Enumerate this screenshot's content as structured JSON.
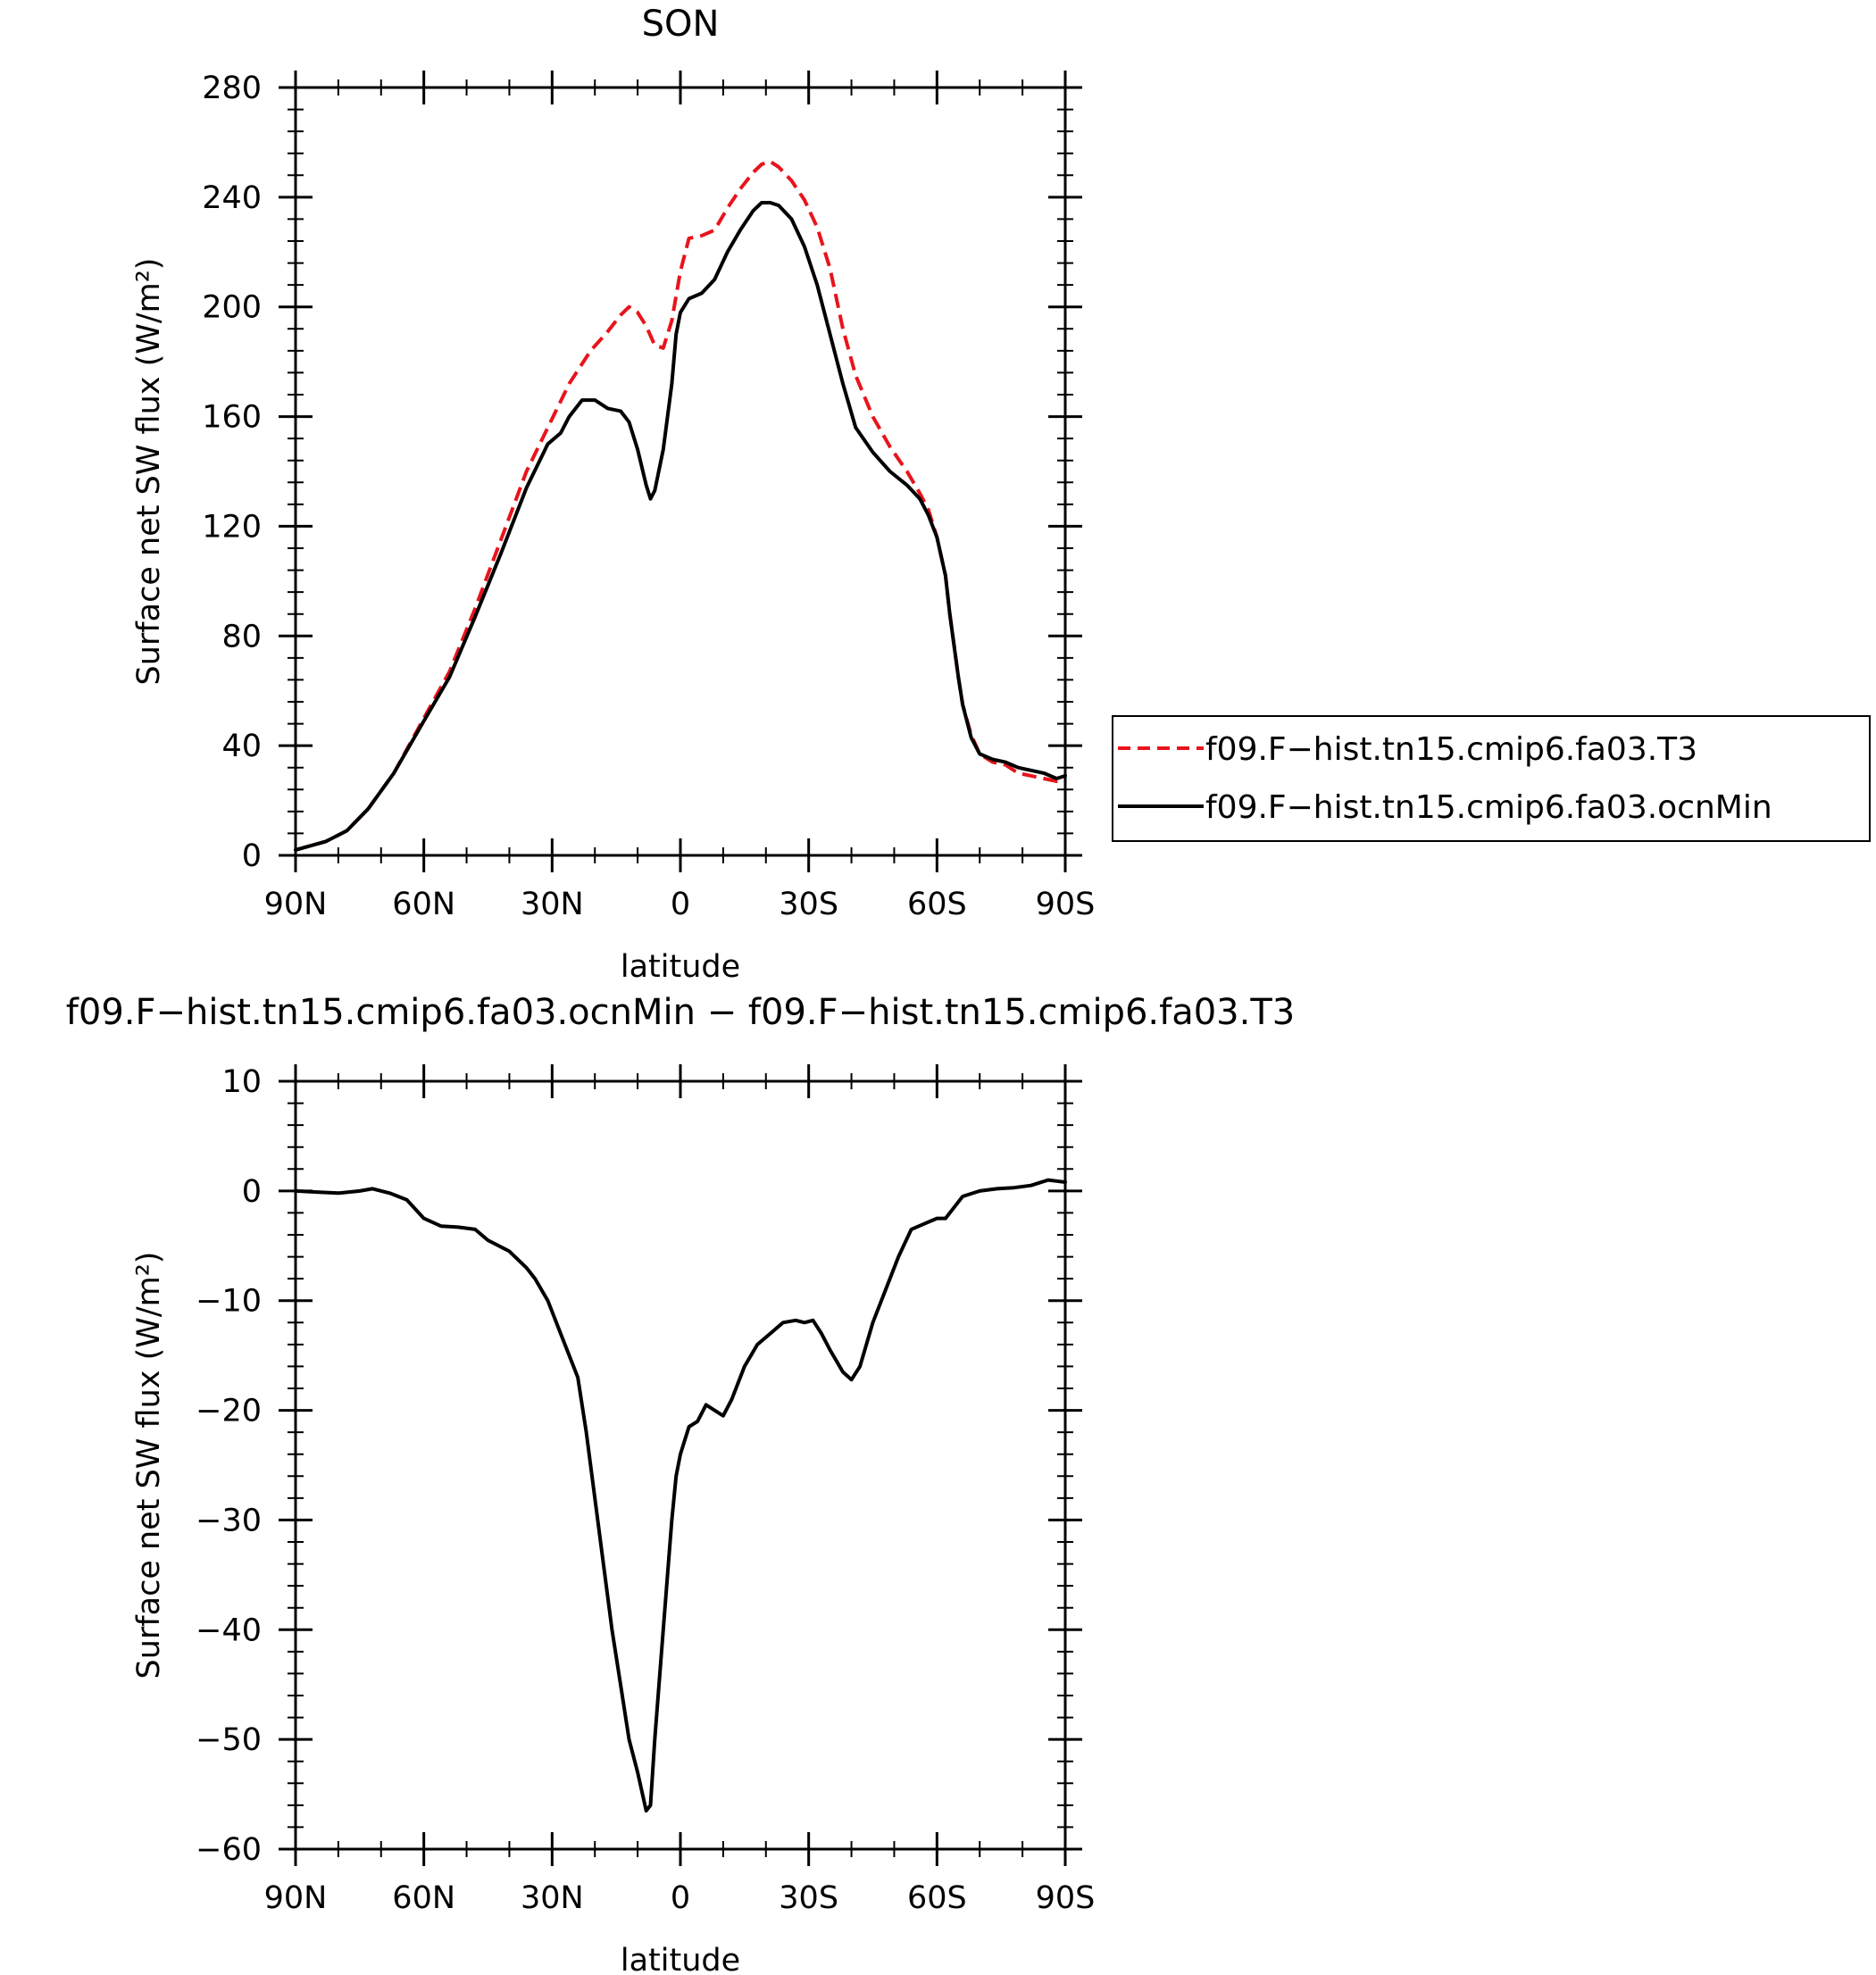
{
  "chart_data": [
    {
      "type": "line",
      "title": "SON",
      "xlabel": "latitude",
      "ylabel": "Surface net SW flux (W/m²)",
      "xlim": [
        90,
        -90
      ],
      "ylim": [
        0,
        280
      ],
      "yticks": [
        0,
        40,
        80,
        120,
        160,
        200,
        240,
        280
      ],
      "xticks": [
        90,
        60,
        30,
        0,
        -30,
        -60,
        -90
      ],
      "xtick_labels": [
        "90N",
        "60N",
        "30N",
        "0",
        "30S",
        "60S",
        "90S"
      ],
      "ytick_labels": [
        "0",
        "40",
        "80",
        "120",
        "160",
        "200",
        "240",
        "280"
      ],
      "grid": false,
      "legend_position": "right",
      "series": [
        {
          "name": "f09.F−hist.tn15.cmip6.fa03.T3",
          "color": "#e8141c",
          "dash": "dashed",
          "points": [
            [
              90,
              2
            ],
            [
              83,
              5
            ],
            [
              78,
              9
            ],
            [
              73,
              17
            ],
            [
              67,
              30
            ],
            [
              60,
              50
            ],
            [
              54,
              67
            ],
            [
              48,
              90
            ],
            [
              42,
              115
            ],
            [
              36,
              140
            ],
            [
              31,
              156
            ],
            [
              26,
              172
            ],
            [
              21,
              184
            ],
            [
              17,
              191
            ],
            [
              14,
              197
            ],
            [
              12,
              200
            ],
            [
              10,
              198
            ],
            [
              8,
              193
            ],
            [
              6,
              186
            ],
            [
              4,
              185
            ],
            [
              2,
              195
            ],
            [
              0,
              213
            ],
            [
              -2,
              225
            ],
            [
              -5,
              226
            ],
            [
              -8,
              228
            ],
            [
              -11,
              236
            ],
            [
              -14,
              243
            ],
            [
              -17,
              249
            ],
            [
              -19,
              252
            ],
            [
              -21,
              253
            ],
            [
              -23,
              251
            ],
            [
              -26,
              246
            ],
            [
              -29,
              239
            ],
            [
              -32,
              229
            ],
            [
              -35,
              214
            ],
            [
              -38,
              192
            ],
            [
              -41,
              175
            ],
            [
              -45,
              160
            ],
            [
              -49,
              149
            ],
            [
              -53,
              140
            ],
            [
              -56,
              132
            ],
            [
              -58,
              126
            ],
            [
              -60,
              116
            ],
            [
              -62,
              102
            ],
            [
              -63,
              88
            ],
            [
              -65,
              65
            ],
            [
              -66,
              55
            ],
            [
              -68,
              44
            ],
            [
              -70,
              37
            ],
            [
              -73,
              34
            ],
            [
              -76,
              33
            ],
            [
              -79,
              30
            ],
            [
              -82,
              29
            ],
            [
              -85,
              28
            ],
            [
              -88,
              27
            ],
            [
              -90,
              28
            ]
          ]
        },
        {
          "name": "f09.F−hist.tn15.cmip6.fa03.ocnMin",
          "color": "#000000",
          "dash": "solid",
          "points": [
            [
              90,
              2
            ],
            [
              83,
              5
            ],
            [
              78,
              9
            ],
            [
              73,
              17
            ],
            [
              67,
              30
            ],
            [
              60,
              49
            ],
            [
              54,
              65
            ],
            [
              48,
              87
            ],
            [
              42,
              110
            ],
            [
              36,
              134
            ],
            [
              31,
              150
            ],
            [
              28,
              154
            ],
            [
              26,
              160
            ],
            [
              23,
              166
            ],
            [
              20,
              166
            ],
            [
              17,
              163
            ],
            [
              14,
              162
            ],
            [
              12,
              158
            ],
            [
              10,
              148
            ],
            [
              8,
              135
            ],
            [
              7,
              130
            ],
            [
              6,
              133
            ],
            [
              4,
              148
            ],
            [
              2,
              172
            ],
            [
              1,
              190
            ],
            [
              0,
              198
            ],
            [
              -2,
              203
            ],
            [
              -5,
              205
            ],
            [
              -8,
              210
            ],
            [
              -11,
              220
            ],
            [
              -14,
              228
            ],
            [
              -17,
              235
            ],
            [
              -19,
              238
            ],
            [
              -21,
              238
            ],
            [
              -23,
              237
            ],
            [
              -26,
              232
            ],
            [
              -29,
              222
            ],
            [
              -32,
              208
            ],
            [
              -35,
              190
            ],
            [
              -38,
              172
            ],
            [
              -41,
              156
            ],
            [
              -45,
              147
            ],
            [
              -49,
              140
            ],
            [
              -53,
              135
            ],
            [
              -56,
              130
            ],
            [
              -58,
              124
            ],
            [
              -60,
              116
            ],
            [
              -62,
              102
            ],
            [
              -63,
              88
            ],
            [
              -65,
              65
            ],
            [
              -66,
              55
            ],
            [
              -68,
              43
            ],
            [
              -70,
              37
            ],
            [
              -73,
              35
            ],
            [
              -76,
              34
            ],
            [
              -79,
              32
            ],
            [
              -82,
              31
            ],
            [
              -85,
              30
            ],
            [
              -88,
              28
            ],
            [
              -90,
              29
            ]
          ]
        }
      ]
    },
    {
      "type": "line",
      "title": "f09.F−hist.tn15.cmip6.fa03.ocnMin − f09.F−hist.tn15.cmip6.fa03.T3",
      "xlabel": "latitude",
      "ylabel": "Surface net SW flux (W/m²)",
      "xlim": [
        90,
        -90
      ],
      "ylim": [
        -60,
        10
      ],
      "yticks": [
        -60,
        -50,
        -40,
        -30,
        -20,
        -10,
        0,
        10
      ],
      "xticks": [
        90,
        60,
        30,
        0,
        -30,
        -60,
        -90
      ],
      "xtick_labels": [
        "90N",
        "60N",
        "30N",
        "0",
        "30S",
        "60S",
        "90S"
      ],
      "ytick_labels": [
        "−60",
        "−50",
        "−40",
        "−30",
        "−20",
        "−10",
        "0",
        "10"
      ],
      "grid": false,
      "series": [
        {
          "color": "#000000",
          "dash": "solid",
          "points": [
            [
              90,
              0
            ],
            [
              85,
              -0.1
            ],
            [
              80,
              -0.2
            ],
            [
              75,
              0
            ],
            [
              72,
              0.2
            ],
            [
              68,
              -0.2
            ],
            [
              64,
              -0.8
            ],
            [
              60,
              -2.5
            ],
            [
              56,
              -3.2
            ],
            [
              52,
              -3.3
            ],
            [
              48,
              -3.5
            ],
            [
              45,
              -4.5
            ],
            [
              40,
              -5.5
            ],
            [
              36,
              -7
            ],
            [
              34,
              -8
            ],
            [
              31,
              -10
            ],
            [
              28,
              -13
            ],
            [
              26,
              -15
            ],
            [
              24,
              -17
            ],
            [
              22,
              -22
            ],
            [
              20,
              -28
            ],
            [
              18,
              -34
            ],
            [
              16,
              -40
            ],
            [
              14,
              -45
            ],
            [
              12,
              -50
            ],
            [
              10,
              -53
            ],
            [
              8,
              -56.5
            ],
            [
              7,
              -56
            ],
            [
              6,
              -50
            ],
            [
              4,
              -40
            ],
            [
              2,
              -30
            ],
            [
              1,
              -26
            ],
            [
              0,
              -24
            ],
            [
              -2,
              -21.5
            ],
            [
              -4,
              -21
            ],
            [
              -6,
              -19.5
            ],
            [
              -8,
              -20
            ],
            [
              -10,
              -20.5
            ],
            [
              -12,
              -19
            ],
            [
              -15,
              -16
            ],
            [
              -18,
              -14
            ],
            [
              -21,
              -13
            ],
            [
              -24,
              -12
            ],
            [
              -27,
              -11.8
            ],
            [
              -29,
              -12
            ],
            [
              -31,
              -11.8
            ],
            [
              -33,
              -13
            ],
            [
              -35,
              -14.5
            ],
            [
              -38,
              -16.5
            ],
            [
              -40,
              -17.2
            ],
            [
              -42,
              -16
            ],
            [
              -45,
              -12
            ],
            [
              -48,
              -9
            ],
            [
              -51,
              -6
            ],
            [
              -54,
              -3.5
            ],
            [
              -57,
              -3
            ],
            [
              -60,
              -2.5
            ],
            [
              -62,
              -2.5
            ],
            [
              -64,
              -1.5
            ],
            [
              -66,
              -0.5
            ],
            [
              -70,
              0
            ],
            [
              -74,
              0.2
            ],
            [
              -78,
              0.3
            ],
            [
              -82,
              0.5
            ],
            [
              -86,
              1
            ],
            [
              -88,
              0.9
            ],
            [
              -90,
              0.8
            ]
          ]
        }
      ]
    }
  ],
  "colors": {
    "control": "#e8141c",
    "experiment": "#000000"
  }
}
